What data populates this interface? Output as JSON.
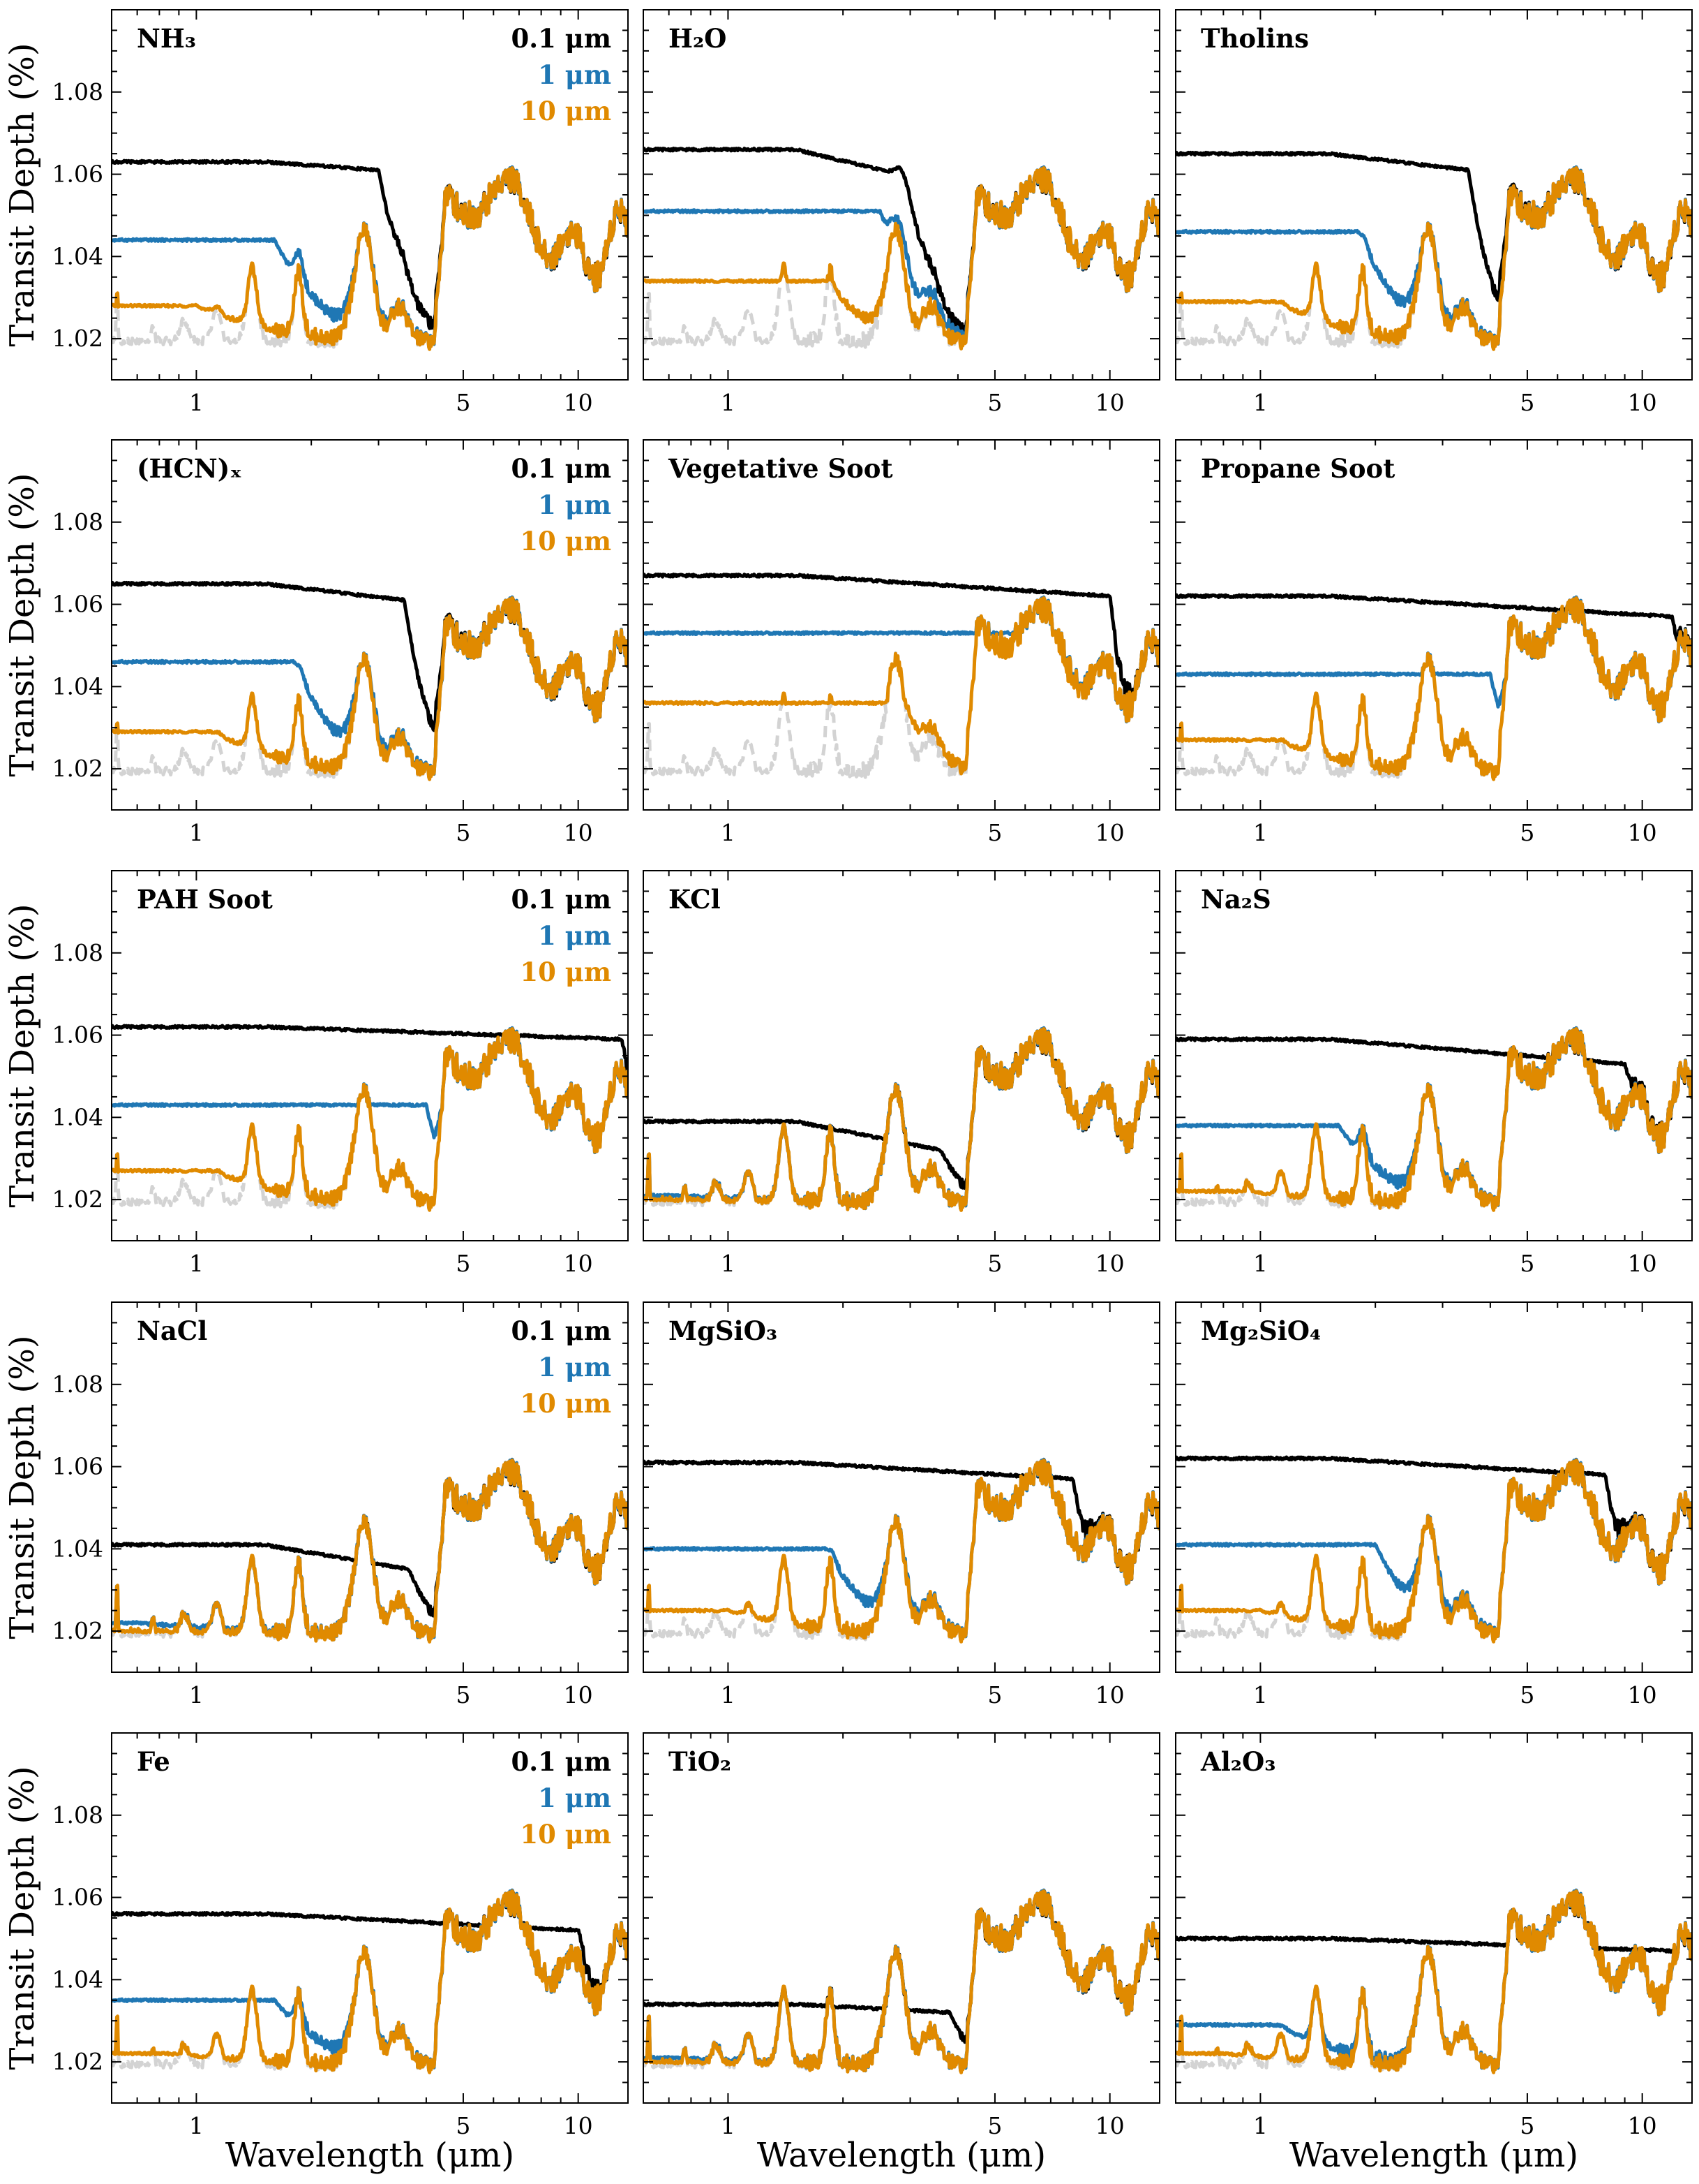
{
  "figure": {
    "ylabel": "Transit Depth (%)",
    "xlabel": "Wavelength (μm)",
    "colors": {
      "clear": "#d3d3d3",
      "r0.1": "#000000",
      "r1": "#1f77b4",
      "r10": "#e08a00"
    },
    "legend_entries": [
      {
        "key": "r0.1",
        "label": "0.1 μm"
      },
      {
        "key": "r1",
        "label": "1 μm"
      },
      {
        "key": "r10",
        "label": "10 μm"
      }
    ]
  },
  "chart_data": [
    {
      "type": "line",
      "title": "NH₃",
      "xscale": "log",
      "xlim": [
        0.6,
        13.5
      ],
      "ylim": [
        1.01,
        1.1
      ],
      "xticks": [
        1,
        5,
        10
      ],
      "yticks": [
        1.02,
        1.04,
        1.06,
        1.08
      ],
      "legend": true,
      "series": [
        {
          "name": "clear",
          "style": "dashed",
          "plateau": 1.02
        },
        {
          "name": "0.1 μm",
          "plateau": 1.063,
          "sag": 0.002,
          "merge_at": 3.0,
          "bump": {
            "at": 9.6,
            "height": 0.012
          }
        },
        {
          "name": "1 μm",
          "plateau": 1.044,
          "merge_at": 1.6
        },
        {
          "name": "10 μm",
          "plateau": 1.028,
          "merge_at": 1.0
        }
      ]
    },
    {
      "type": "line",
      "title": "H₂O",
      "xscale": "log",
      "xlim": [
        0.6,
        13.5
      ],
      "ylim": [
        1.01,
        1.1
      ],
      "xticks": [
        1,
        5,
        10
      ],
      "yticks": [
        1.02,
        1.04,
        1.06,
        1.08
      ],
      "legend": false,
      "series": [
        {
          "name": "clear",
          "style": "dashed",
          "plateau": 1.02
        },
        {
          "name": "0.1 μm",
          "plateau": 1.066,
          "sag": 0.006,
          "merge_at": 2.8,
          "bump": {
            "at": 3.1,
            "height": 0.008
          }
        },
        {
          "name": "1 μm",
          "plateau": 1.051,
          "merge_at": 2.5
        },
        {
          "name": "10 μm",
          "plateau": 1.034,
          "merge_at": 1.8
        }
      ]
    },
    {
      "type": "line",
      "title": "Tholins",
      "xscale": "log",
      "xlim": [
        0.6,
        13.5
      ],
      "ylim": [
        1.01,
        1.1
      ],
      "xticks": [
        1,
        5,
        10
      ],
      "yticks": [
        1.02,
        1.04,
        1.06,
        1.08
      ],
      "legend": false,
      "series": [
        {
          "name": "clear",
          "style": "dashed",
          "plateau": 1.02
        },
        {
          "name": "0.1 μm",
          "plateau": 1.065,
          "sag": 0.004,
          "merge_at": 3.5
        },
        {
          "name": "1 μm",
          "plateau": 1.046,
          "merge_at": 1.8
        },
        {
          "name": "10 μm",
          "plateau": 1.029,
          "merge_at": 1.1
        }
      ]
    },
    {
      "type": "line",
      "title": "(HCN)ₓ",
      "xscale": "log",
      "xlim": [
        0.6,
        13.5
      ],
      "ylim": [
        1.01,
        1.1
      ],
      "xticks": [
        1,
        5,
        10
      ],
      "yticks": [
        1.02,
        1.04,
        1.06,
        1.08
      ],
      "legend": true,
      "series": [
        {
          "name": "clear",
          "style": "dashed",
          "plateau": 1.02
        },
        {
          "name": "0.1 μm",
          "plateau": 1.065,
          "sag": 0.004,
          "merge_at": 3.5
        },
        {
          "name": "1 μm",
          "plateau": 1.046,
          "merge_at": 1.8
        },
        {
          "name": "10 μm",
          "plateau": 1.029,
          "merge_at": 1.1
        }
      ]
    },
    {
      "type": "line",
      "title": "Vegetative Soot",
      "xscale": "log",
      "xlim": [
        0.6,
        13.5
      ],
      "ylim": [
        1.01,
        1.1
      ],
      "xticks": [
        1,
        5,
        10
      ],
      "yticks": [
        1.02,
        1.04,
        1.06,
        1.08
      ],
      "legend": false,
      "series": [
        {
          "name": "clear",
          "style": "dashed",
          "plateau": 1.02
        },
        {
          "name": "0.1 μm",
          "plateau": 1.067,
          "sag": 0.005,
          "merge_at": 10.0
        },
        {
          "name": "1 μm",
          "plateau": 1.053,
          "merge_at": 6.5
        },
        {
          "name": "10 μm",
          "plateau": 1.036,
          "merge_at": 2.8
        }
      ]
    },
    {
      "type": "line",
      "title": "Propane Soot",
      "xscale": "log",
      "xlim": [
        0.6,
        13.5
      ],
      "ylim": [
        1.01,
        1.1
      ],
      "xticks": [
        1,
        5,
        10
      ],
      "yticks": [
        1.02,
        1.04,
        1.06,
        1.08
      ],
      "legend": false,
      "series": [
        {
          "name": "clear",
          "style": "dashed",
          "plateau": 1.02
        },
        {
          "name": "0.1 μm",
          "plateau": 1.062,
          "sag": 0.005,
          "merge_at": 12.0
        },
        {
          "name": "1 μm",
          "plateau": 1.043,
          "merge_at": 4.0
        },
        {
          "name": "10 μm",
          "plateau": 1.027,
          "merge_at": 1.1
        }
      ]
    },
    {
      "type": "line",
      "title": "PAH Soot",
      "xscale": "log",
      "xlim": [
        0.6,
        13.5
      ],
      "ylim": [
        1.01,
        1.1
      ],
      "xticks": [
        1,
        5,
        10
      ],
      "yticks": [
        1.02,
        1.04,
        1.06,
        1.08
      ],
      "legend": true,
      "series": [
        {
          "name": "clear",
          "style": "dashed",
          "plateau": 1.02
        },
        {
          "name": "0.1 μm",
          "plateau": 1.062,
          "sag": 0.003,
          "merge_at": 13.0
        },
        {
          "name": "1 μm",
          "plateau": 1.043,
          "merge_at": 4.0
        },
        {
          "name": "10 μm",
          "plateau": 1.027,
          "merge_at": 1.1
        }
      ]
    },
    {
      "type": "line",
      "title": "KCl",
      "xscale": "log",
      "xlim": [
        0.6,
        13.5
      ],
      "ylim": [
        1.01,
        1.1
      ],
      "xticks": [
        1,
        5,
        10
      ],
      "yticks": [
        1.02,
        1.04,
        1.06,
        1.08
      ],
      "legend": false,
      "series": [
        {
          "name": "clear",
          "style": "dashed",
          "plateau": 1.02
        },
        {
          "name": "0.1 μm",
          "plateau": 1.039,
          "sag": 0.007,
          "merge_at": 3.6
        },
        {
          "name": "1 μm",
          "plateau": 1.021,
          "merge_at": 0.7
        },
        {
          "name": "10 μm",
          "plateau": 1.02,
          "merge_at": 0.62
        }
      ]
    },
    {
      "type": "line",
      "title": "Na₂S",
      "xscale": "log",
      "xlim": [
        0.6,
        13.5
      ],
      "ylim": [
        1.01,
        1.1
      ],
      "xticks": [
        1,
        5,
        10
      ],
      "yticks": [
        1.02,
        1.04,
        1.06,
        1.08
      ],
      "legend": false,
      "series": [
        {
          "name": "clear",
          "style": "dashed",
          "plateau": 1.02
        },
        {
          "name": "0.1 μm",
          "plateau": 1.059,
          "sag": 0.006,
          "merge_at": 9.0
        },
        {
          "name": "1 μm",
          "plateau": 1.038,
          "merge_at": 1.6
        },
        {
          "name": "10 μm",
          "plateau": 1.022,
          "merge_at": 0.9
        }
      ]
    },
    {
      "type": "line",
      "title": "NaCl",
      "xscale": "log",
      "xlim": [
        0.6,
        13.5
      ],
      "ylim": [
        1.01,
        1.1
      ],
      "xticks": [
        1,
        5,
        10
      ],
      "yticks": [
        1.02,
        1.04,
        1.06,
        1.08
      ],
      "legend": true,
      "series": [
        {
          "name": "clear",
          "style": "dashed",
          "plateau": 1.02
        },
        {
          "name": "0.1 μm",
          "plateau": 1.041,
          "sag": 0.006,
          "merge_at": 3.6
        },
        {
          "name": "1 μm",
          "plateau": 1.022,
          "merge_at": 0.7
        },
        {
          "name": "10 μm",
          "plateau": 1.02,
          "merge_at": 0.62
        }
      ]
    },
    {
      "type": "line",
      "title": "MgSiO₃",
      "xscale": "log",
      "xlim": [
        0.6,
        13.5
      ],
      "ylim": [
        1.01,
        1.1
      ],
      "xticks": [
        1,
        5,
        10
      ],
      "yticks": [
        1.02,
        1.04,
        1.06,
        1.08
      ],
      "legend": false,
      "series": [
        {
          "name": "clear",
          "style": "dashed",
          "plateau": 1.02
        },
        {
          "name": "0.1 μm",
          "plateau": 1.061,
          "sag": 0.004,
          "merge_at": 8.0,
          "bump": {
            "at": 9.7,
            "height": 0.006
          }
        },
        {
          "name": "1 μm",
          "plateau": 1.04,
          "merge_at": 1.8
        },
        {
          "name": "10 μm",
          "plateau": 1.025,
          "merge_at": 1.0
        }
      ]
    },
    {
      "type": "line",
      "title": "Mg₂SiO₄",
      "xscale": "log",
      "xlim": [
        0.6,
        13.5
      ],
      "ylim": [
        1.01,
        1.1
      ],
      "xticks": [
        1,
        5,
        10
      ],
      "yticks": [
        1.02,
        1.04,
        1.06,
        1.08
      ],
      "legend": false,
      "series": [
        {
          "name": "clear",
          "style": "dashed",
          "plateau": 1.02
        },
        {
          "name": "0.1 μm",
          "plateau": 1.062,
          "sag": 0.004,
          "merge_at": 8.0,
          "bump": {
            "at": 9.8,
            "height": 0.007
          }
        },
        {
          "name": "1 μm",
          "plateau": 1.041,
          "merge_at": 2.0
        },
        {
          "name": "10 μm",
          "plateau": 1.025,
          "merge_at": 1.0
        }
      ]
    },
    {
      "type": "line",
      "title": "Fe",
      "xscale": "log",
      "xlim": [
        0.6,
        13.5
      ],
      "ylim": [
        1.01,
        1.1
      ],
      "xticks": [
        1,
        5,
        10
      ],
      "yticks": [
        1.02,
        1.04,
        1.06,
        1.08
      ],
      "legend": true,
      "series": [
        {
          "name": "clear",
          "style": "dashed",
          "plateau": 1.02
        },
        {
          "name": "0.1 μm",
          "plateau": 1.056,
          "sag": 0.004,
          "merge_at": 10.0
        },
        {
          "name": "1 μm",
          "plateau": 1.035,
          "merge_at": 1.6
        },
        {
          "name": "10 μm",
          "plateau": 1.022,
          "merge_at": 0.85
        }
      ]
    },
    {
      "type": "line",
      "title": "TiO₂",
      "xscale": "log",
      "xlim": [
        0.6,
        13.5
      ],
      "ylim": [
        1.01,
        1.1
      ],
      "xticks": [
        1,
        5,
        10
      ],
      "yticks": [
        1.02,
        1.04,
        1.06,
        1.08
      ],
      "legend": false,
      "series": [
        {
          "name": "clear",
          "style": "dashed",
          "plateau": 1.02
        },
        {
          "name": "0.1 μm",
          "plateau": 1.034,
          "sag": 0.002,
          "merge_at": 3.8
        },
        {
          "name": "1 μm",
          "plateau": 1.021,
          "merge_at": 0.7
        },
        {
          "name": "10 μm",
          "plateau": 1.02,
          "merge_at": 0.62
        }
      ]
    },
    {
      "type": "line",
      "title": "Al₂O₃",
      "xscale": "log",
      "xlim": [
        0.6,
        13.5
      ],
      "ylim": [
        1.01,
        1.1
      ],
      "xticks": [
        1,
        5,
        10
      ],
      "yticks": [
        1.02,
        1.04,
        1.06,
        1.08
      ],
      "legend": false,
      "series": [
        {
          "name": "clear",
          "style": "dashed",
          "plateau": 1.02
        },
        {
          "name": "0.1 μm",
          "plateau": 1.05,
          "sag": 0.003,
          "merge_at": 12.0
        },
        {
          "name": "1 μm",
          "plateau": 1.029,
          "merge_at": 1.1
        },
        {
          "name": "10 μm",
          "plateau": 1.022,
          "merge_at": 0.8
        }
      ]
    }
  ]
}
